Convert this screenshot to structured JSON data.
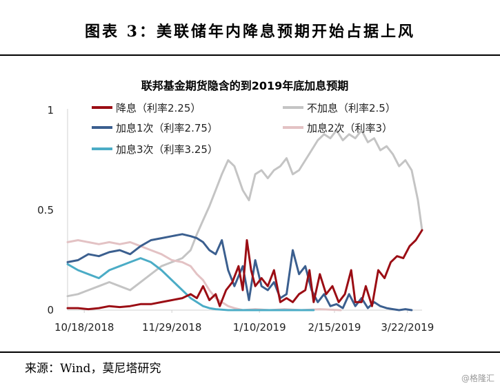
{
  "figure_title": "图表 3：美联储年内降息预期开始占据上风",
  "source": "来源：Wind，莫尼塔研究",
  "watermark": "@格隆汇",
  "chart_data": {
    "type": "line",
    "title": "联邦基金期货隐含的到2019年底加息预期",
    "xlabel": "",
    "ylabel": "",
    "ylim": [
      0,
      1
    ],
    "yticks": [
      "0",
      "0.5",
      "1"
    ],
    "xticks": [
      "10/18/2018",
      "11/29/2018",
      "1/10/2019",
      "2/15/2019",
      "3/22/2019"
    ],
    "x_range": [
      "2018-10-10",
      "2019-03-29"
    ],
    "grid": false,
    "legend_position": "top",
    "series": [
      {
        "name": "降息（利率2.25）",
        "color": "#9b0d14",
        "values": [
          [
            "2018-10-10",
            0.01
          ],
          [
            "2018-10-15",
            0.01
          ],
          [
            "2018-10-20",
            0.005
          ],
          [
            "2018-10-25",
            0.01
          ],
          [
            "2018-10-30",
            0.02
          ],
          [
            "2018-11-04",
            0.015
          ],
          [
            "2018-11-09",
            0.02
          ],
          [
            "2018-11-14",
            0.03
          ],
          [
            "2018-11-19",
            0.03
          ],
          [
            "2018-11-24",
            0.04
          ],
          [
            "2018-11-29",
            0.05
          ],
          [
            "2018-12-04",
            0.06
          ],
          [
            "2018-12-08",
            0.08
          ],
          [
            "2018-12-11",
            0.06
          ],
          [
            "2018-12-14",
            0.12
          ],
          [
            "2018-12-17",
            0.05
          ],
          [
            "2018-12-20",
            0.08
          ],
          [
            "2018-12-22",
            0.02
          ],
          [
            "2018-12-25",
            0.1
          ],
          [
            "2018-12-28",
            0.14
          ],
          [
            "2018-12-31",
            0.22
          ],
          [
            "2019-01-02",
            0.1
          ],
          [
            "2019-01-04",
            0.35
          ],
          [
            "2019-01-06",
            0.2
          ],
          [
            "2019-01-08",
            0.12
          ],
          [
            "2019-01-11",
            0.16
          ],
          [
            "2019-01-14",
            0.12
          ],
          [
            "2019-01-17",
            0.2
          ],
          [
            "2019-01-20",
            0.04
          ],
          [
            "2019-01-23",
            0.06
          ],
          [
            "2019-01-26",
            0.04
          ],
          [
            "2019-01-29",
            0.08
          ],
          [
            "2019-02-01",
            0.1
          ],
          [
            "2019-02-03",
            0.2
          ],
          [
            "2019-02-05",
            0.04
          ],
          [
            "2019-02-08",
            0.18
          ],
          [
            "2019-02-11",
            0.08
          ],
          [
            "2019-02-14",
            0.12
          ],
          [
            "2019-02-17",
            0.04
          ],
          [
            "2019-02-20",
            0.08
          ],
          [
            "2019-02-23",
            0.2
          ],
          [
            "2019-02-25",
            0.04
          ],
          [
            "2019-02-28",
            0.04
          ],
          [
            "2019-03-02",
            0.12
          ],
          [
            "2019-03-05",
            0.02
          ],
          [
            "2019-03-08",
            0.2
          ],
          [
            "2019-03-11",
            0.16
          ],
          [
            "2019-03-14",
            0.24
          ],
          [
            "2019-03-17",
            0.27
          ],
          [
            "2019-03-20",
            0.26
          ],
          [
            "2019-03-23",
            0.32
          ],
          [
            "2019-03-26",
            0.35
          ],
          [
            "2019-03-29",
            0.4
          ]
        ]
      },
      {
        "name": "不加息（利率2.5）",
        "color": "#c4c4c4",
        "values": [
          [
            "2018-10-10",
            0.07
          ],
          [
            "2018-10-15",
            0.08
          ],
          [
            "2018-10-20",
            0.1
          ],
          [
            "2018-10-25",
            0.12
          ],
          [
            "2018-10-30",
            0.14
          ],
          [
            "2018-11-04",
            0.12
          ],
          [
            "2018-11-09",
            0.1
          ],
          [
            "2018-11-14",
            0.14
          ],
          [
            "2018-11-19",
            0.18
          ],
          [
            "2018-11-24",
            0.22
          ],
          [
            "2018-11-29",
            0.24
          ],
          [
            "2018-12-04",
            0.26
          ],
          [
            "2018-12-08",
            0.3
          ],
          [
            "2018-12-11",
            0.38
          ],
          [
            "2018-12-14",
            0.45
          ],
          [
            "2018-12-17",
            0.52
          ],
          [
            "2018-12-20",
            0.6
          ],
          [
            "2018-12-23",
            0.68
          ],
          [
            "2018-12-26",
            0.75
          ],
          [
            "2018-12-29",
            0.72
          ],
          [
            "2019-01-02",
            0.6
          ],
          [
            "2019-01-05",
            0.55
          ],
          [
            "2019-01-08",
            0.68
          ],
          [
            "2019-01-11",
            0.7
          ],
          [
            "2019-01-14",
            0.66
          ],
          [
            "2019-01-17",
            0.7
          ],
          [
            "2019-01-20",
            0.72
          ],
          [
            "2019-01-23",
            0.76
          ],
          [
            "2019-01-26",
            0.68
          ],
          [
            "2019-01-29",
            0.7
          ],
          [
            "2019-02-01",
            0.75
          ],
          [
            "2019-02-04",
            0.8
          ],
          [
            "2019-02-07",
            0.85
          ],
          [
            "2019-02-10",
            0.88
          ],
          [
            "2019-02-13",
            0.86
          ],
          [
            "2019-02-16",
            0.9
          ],
          [
            "2019-02-19",
            0.85
          ],
          [
            "2019-02-22",
            0.88
          ],
          [
            "2019-02-25",
            0.86
          ],
          [
            "2019-02-28",
            0.9
          ],
          [
            "2019-03-03",
            0.84
          ],
          [
            "2019-03-06",
            0.86
          ],
          [
            "2019-03-09",
            0.8
          ],
          [
            "2019-03-12",
            0.82
          ],
          [
            "2019-03-15",
            0.78
          ],
          [
            "2019-03-18",
            0.72
          ],
          [
            "2019-03-21",
            0.75
          ],
          [
            "2019-03-24",
            0.7
          ],
          [
            "2019-03-27",
            0.55
          ],
          [
            "2019-03-29",
            0.4
          ]
        ]
      },
      {
        "name": "加息1次（利率2.75）",
        "color": "#3b5f8f",
        "values": [
          [
            "2018-10-10",
            0.24
          ],
          [
            "2018-10-15",
            0.25
          ],
          [
            "2018-10-20",
            0.28
          ],
          [
            "2018-10-25",
            0.27
          ],
          [
            "2018-10-30",
            0.29
          ],
          [
            "2018-11-04",
            0.3
          ],
          [
            "2018-11-09",
            0.28
          ],
          [
            "2018-11-14",
            0.32
          ],
          [
            "2018-11-19",
            0.35
          ],
          [
            "2018-11-24",
            0.36
          ],
          [
            "2018-11-29",
            0.37
          ],
          [
            "2018-12-04",
            0.38
          ],
          [
            "2018-12-08",
            0.37
          ],
          [
            "2018-12-11",
            0.36
          ],
          [
            "2018-12-14",
            0.34
          ],
          [
            "2018-12-17",
            0.3
          ],
          [
            "2018-12-20",
            0.28
          ],
          [
            "2018-12-23",
            0.35
          ],
          [
            "2018-12-26",
            0.2
          ],
          [
            "2018-12-29",
            0.12
          ],
          [
            "2019-01-02",
            0.22
          ],
          [
            "2019-01-05",
            0.05
          ],
          [
            "2019-01-08",
            0.25
          ],
          [
            "2019-01-11",
            0.12
          ],
          [
            "2019-01-14",
            0.1
          ],
          [
            "2019-01-17",
            0.14
          ],
          [
            "2019-01-20",
            0.06
          ],
          [
            "2019-01-23",
            0.08
          ],
          [
            "2019-01-26",
            0.3
          ],
          [
            "2019-01-29",
            0.18
          ],
          [
            "2019-02-01",
            0.22
          ],
          [
            "2019-02-04",
            0.1
          ],
          [
            "2019-02-07",
            0.04
          ],
          [
            "2019-02-10",
            0.08
          ],
          [
            "2019-02-13",
            0.02
          ],
          [
            "2019-02-16",
            0.03
          ],
          [
            "2019-02-19",
            0.01
          ],
          [
            "2019-02-22",
            0.08
          ],
          [
            "2019-02-25",
            0.02
          ],
          [
            "2019-02-28",
            0.06
          ],
          [
            "2019-03-03",
            0.01
          ],
          [
            "2019-03-06",
            0.04
          ],
          [
            "2019-03-09",
            0.02
          ],
          [
            "2019-03-12",
            0.01
          ],
          [
            "2019-03-15",
            0.005
          ],
          [
            "2019-03-18",
            0.0
          ],
          [
            "2019-03-21",
            0.005
          ],
          [
            "2019-03-24",
            0.0
          ]
        ]
      },
      {
        "name": "加息2次（利率3）",
        "color": "#e3c2c4",
        "values": [
          [
            "2018-10-10",
            0.34
          ],
          [
            "2018-10-15",
            0.35
          ],
          [
            "2018-10-20",
            0.34
          ],
          [
            "2018-10-25",
            0.33
          ],
          [
            "2018-10-30",
            0.34
          ],
          [
            "2018-11-04",
            0.33
          ],
          [
            "2018-11-09",
            0.34
          ],
          [
            "2018-11-14",
            0.32
          ],
          [
            "2018-11-19",
            0.3
          ],
          [
            "2018-11-24",
            0.28
          ],
          [
            "2018-11-29",
            0.25
          ],
          [
            "2018-12-04",
            0.24
          ],
          [
            "2018-12-08",
            0.22
          ],
          [
            "2018-12-11",
            0.18
          ],
          [
            "2018-12-14",
            0.15
          ],
          [
            "2018-12-17",
            0.1
          ],
          [
            "2018-12-20",
            0.06
          ],
          [
            "2018-12-23",
            0.04
          ],
          [
            "2018-12-26",
            0.02
          ],
          [
            "2018-12-29",
            0.01
          ],
          [
            "2019-01-02",
            0.0
          ],
          [
            "2019-01-08",
            0.005
          ],
          [
            "2019-01-15",
            0.0
          ],
          [
            "2019-01-22",
            0.005
          ],
          [
            "2019-01-30",
            0.0
          ],
          [
            "2019-02-08",
            0.005
          ],
          [
            "2019-02-18",
            0.0
          ]
        ]
      },
      {
        "name": "加息3次（利率3.25）",
        "color": "#4bacc6",
        "values": [
          [
            "2018-10-10",
            0.23
          ],
          [
            "2018-10-15",
            0.2
          ],
          [
            "2018-10-20",
            0.18
          ],
          [
            "2018-10-25",
            0.16
          ],
          [
            "2018-10-30",
            0.2
          ],
          [
            "2018-11-04",
            0.22
          ],
          [
            "2018-11-09",
            0.24
          ],
          [
            "2018-11-14",
            0.26
          ],
          [
            "2018-11-19",
            0.24
          ],
          [
            "2018-11-24",
            0.2
          ],
          [
            "2018-11-29",
            0.15
          ],
          [
            "2018-12-04",
            0.1
          ],
          [
            "2018-12-08",
            0.06
          ],
          [
            "2018-12-11",
            0.04
          ],
          [
            "2018-12-14",
            0.02
          ],
          [
            "2018-12-17",
            0.01
          ],
          [
            "2018-12-20",
            0.005
          ],
          [
            "2018-12-26",
            0.0
          ],
          [
            "2019-01-05",
            0.0
          ],
          [
            "2019-01-20",
            0.0
          ],
          [
            "2019-02-05",
            0.0
          ]
        ]
      }
    ]
  }
}
